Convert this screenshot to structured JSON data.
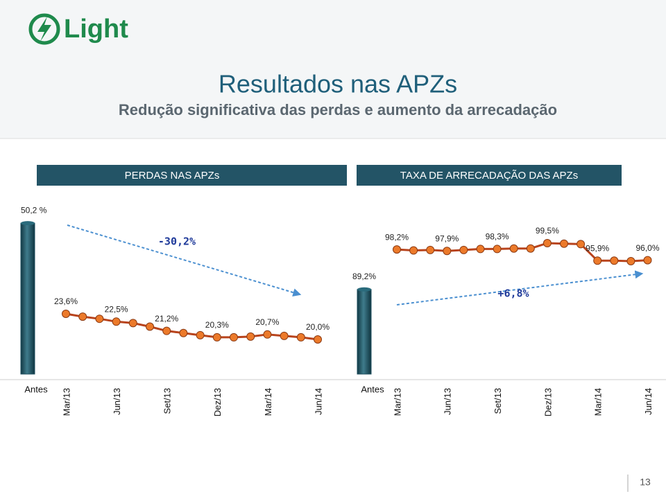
{
  "header": {
    "logo": "Light",
    "title": "Resultados nas APZs",
    "subtitle": "Redução significativa das perdas e aumento da arrecadação"
  },
  "page_number": "13",
  "chart_data": [
    {
      "type": "combo",
      "title": "PERDAS NAS APZs",
      "annotation": "-30,2%",
      "categories": [
        "Antes",
        "Mar/13",
        null,
        null,
        "Jun/13",
        null,
        null,
        "Set/13",
        null,
        null,
        "Dez/13",
        null,
        null,
        "Mar/14",
        null,
        null,
        "Jun/14"
      ],
      "series": [
        {
          "type": "bar",
          "color": "#1e4f5f",
          "values": [
            50.2,
            null,
            null,
            null,
            null,
            null,
            null,
            null,
            null,
            null,
            null,
            null,
            null,
            null,
            null,
            null,
            null
          ],
          "value_labels": [
            "50,2 %",
            null,
            null,
            null,
            null,
            null,
            null,
            null,
            null,
            null,
            null,
            null,
            null,
            null,
            null,
            null,
            null
          ]
        },
        {
          "type": "line",
          "color": "#b8431c",
          "marker_color": "#ec7a2a",
          "values": [
            null,
            23.6,
            23.2,
            22.9,
            22.5,
            22.3,
            21.8,
            21.2,
            20.9,
            20.6,
            20.3,
            20.3,
            20.4,
            20.7,
            20.5,
            20.3,
            20.0
          ],
          "value_labels": [
            null,
            "23,6%",
            null,
            null,
            "22,5%",
            null,
            null,
            "21,2%",
            null,
            null,
            "20,3%",
            null,
            null,
            "20,7%",
            null,
            null,
            "20,0%"
          ]
        }
      ]
    },
    {
      "type": "combo",
      "title": "TAXA DE ARRECADAÇÃO DAS APZs",
      "annotation": "+6,8%",
      "categories": [
        "Antes",
        "Mar/13",
        null,
        null,
        "Jun/13",
        null,
        null,
        "Set/13",
        null,
        null,
        "Dez/13",
        null,
        null,
        "Mar/14",
        null,
        null,
        "Jun/14"
      ],
      "series": [
        {
          "type": "bar",
          "color": "#1e4f5f",
          "values": [
            89.2,
            null,
            null,
            null,
            null,
            null,
            null,
            null,
            null,
            null,
            null,
            null,
            null,
            null,
            null,
            null,
            null
          ],
          "value_labels": [
            "89,2%",
            null,
            null,
            null,
            null,
            null,
            null,
            null,
            null,
            null,
            null,
            null,
            null,
            null,
            null,
            null,
            null
          ]
        },
        {
          "type": "line",
          "color": "#b8431c",
          "marker_color": "#ec7a2a",
          "values": [
            null,
            98.2,
            98.0,
            98.1,
            97.9,
            98.1,
            98.3,
            98.3,
            98.4,
            98.4,
            99.5,
            99.4,
            99.3,
            95.9,
            95.9,
            95.8,
            96.0
          ],
          "value_labels": [
            null,
            "98,2%",
            null,
            null,
            "97,9%",
            null,
            null,
            "98,3%",
            null,
            null,
            "99,5%",
            null,
            null,
            "95,9%",
            null,
            null,
            "96,0%"
          ]
        }
      ]
    }
  ]
}
